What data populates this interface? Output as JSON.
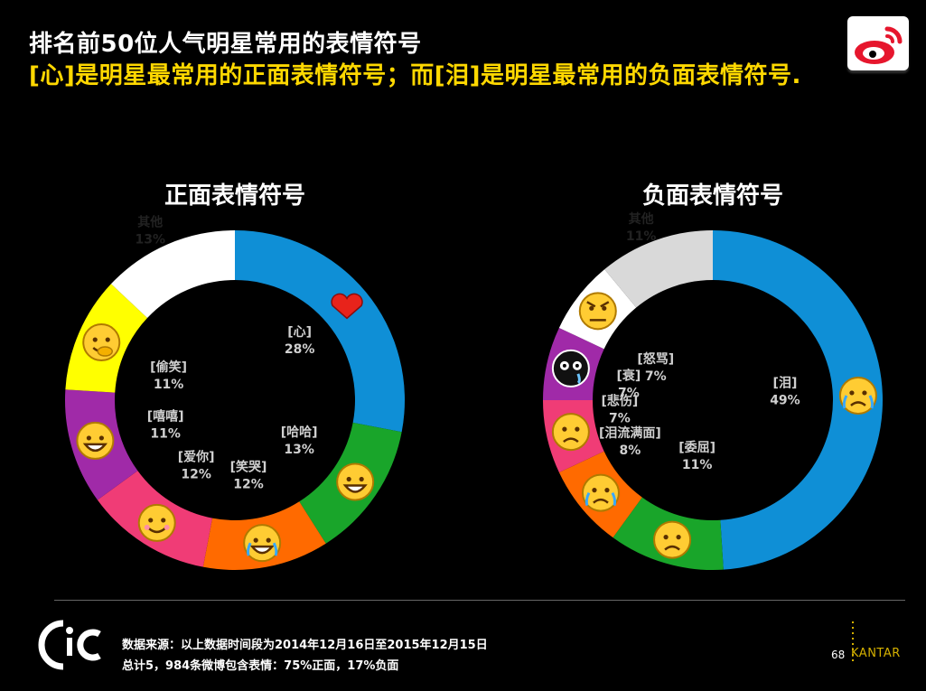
{
  "header": {
    "title": "排名前50位人气明星常用的表情符号",
    "subtitle": "[心]是明星最常用的正面表情符号；而[泪]是明星最常用的负面表情符号."
  },
  "chart_data": [
    {
      "type": "pie",
      "title": "正面表情符号",
      "slices": [
        {
          "label": "[心]",
          "value": 28,
          "value_label": "28%",
          "color": "#0f8fd6",
          "icon": "heart-icon"
        },
        {
          "label": "[哈哈]",
          "value": 13,
          "value_label": "13%",
          "color": "#19a52a",
          "icon": "laughing-face-icon"
        },
        {
          "label": "[笑哭]",
          "value": 12,
          "value_label": "12%",
          "color": "#ff6a00",
          "icon": "tears-of-joy-icon"
        },
        {
          "label": "[爱你]",
          "value": 12,
          "value_label": "12%",
          "color": "#f03c76",
          "icon": "adoring-face-icon"
        },
        {
          "label": "[嘻嘻]",
          "value": 11,
          "value_label": "11%",
          "color": "#a02aa8",
          "icon": "grinning-face-icon"
        },
        {
          "label": "[偷笑]",
          "value": 11,
          "value_label": "11%",
          "color": "#ffff00",
          "icon": "giggling-face-icon"
        },
        {
          "label": "其他",
          "value": 13,
          "value_label": "13%",
          "color": "#ffffff",
          "icon": ""
        }
      ]
    },
    {
      "type": "pie",
      "title": "负面表情符号",
      "slices": [
        {
          "label": "[泪]",
          "value": 49,
          "value_label": "49%",
          "color": "#0f8fd6",
          "icon": "crying-face-icon"
        },
        {
          "label": "[委屈]",
          "value": 11,
          "value_label": "11%",
          "color": "#19a52a",
          "icon": "aggrieved-face-icon"
        },
        {
          "label": "[泪流满面]",
          "value": 8,
          "value_label": "8%",
          "color": "#ff6a00",
          "icon": "sobbing-face-icon"
        },
        {
          "label": "[悲伤]",
          "value": 7,
          "value_label": "7%",
          "color": "#f03c76",
          "icon": "sad-face-icon"
        },
        {
          "label": "[衰]",
          "value": 7,
          "value_label": "7%",
          "color": "#a02aa8",
          "icon": "gloomy-black-face-icon"
        },
        {
          "label": "[怒骂]",
          "value": 7,
          "value_label": "7%",
          "color": "#ffffff",
          "icon": "angry-face-icon"
        },
        {
          "label": "其他",
          "value": 11,
          "value_label": "11%",
          "color": "#d9d9d9",
          "icon": ""
        }
      ]
    }
  ],
  "footer": {
    "source": "数据来源：以上数据时间段为2014年12月16日至2015年12月15日",
    "note": "总计5，984条微博包含表情：75%正面，17%负面",
    "page_number": "68",
    "brand": "KANTAR"
  }
}
